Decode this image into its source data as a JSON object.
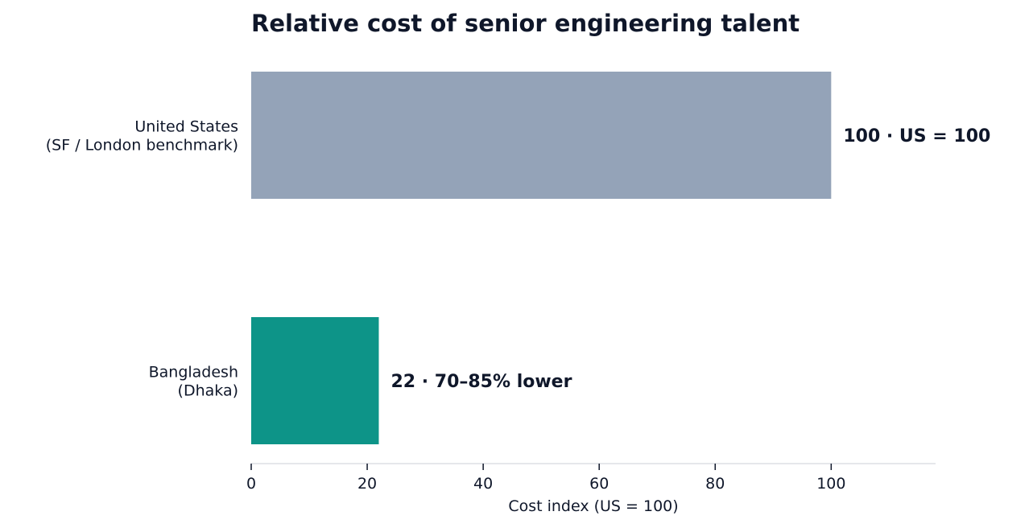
{
  "chart_data": {
    "type": "bar",
    "orientation": "horizontal",
    "title": "Relative cost of senior engineering talent",
    "xlabel": "Cost index (US = 100)",
    "ylabel": "",
    "xlim": [
      0,
      118
    ],
    "xticks": [
      0,
      20,
      40,
      60,
      80,
      100
    ],
    "grid": false,
    "categories": [
      [
        "United States",
        "(SF / London benchmark)"
      ],
      [
        "Bangladesh",
        "(Dhaka)"
      ]
    ],
    "values": [
      100,
      22
    ],
    "data_labels": [
      "100  ·  US = 100",
      "22  ·  70–85% lower"
    ],
    "colors": {
      "bars": [
        "#94a3b8",
        "#0d9488"
      ],
      "text": "#0f172a",
      "axis": "#e5e7eb",
      "tick": "#0f172a"
    }
  }
}
